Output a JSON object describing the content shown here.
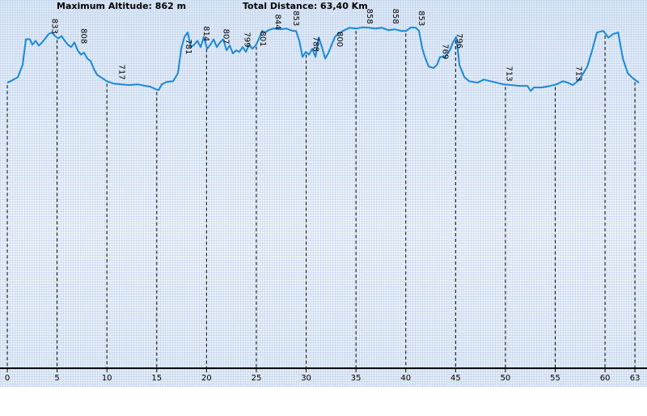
{
  "chart_data": {
    "type": "line",
    "header_left": "Maximum Altitude: 862 m",
    "header_right": "Total Distance: 63,40 Km",
    "color": "#1a88d8",
    "x": [
      0,
      0.49,
      1.06,
      1.54,
      1.87,
      2.27,
      2.52,
      2.84,
      3.17,
      3.49,
      3.82,
      4.14,
      4.47,
      4.79,
      5.12,
      5.44,
      5.77,
      6.09,
      6.41,
      6.74,
      7.06,
      7.39,
      7.71,
      8.04,
      8.36,
      8.69,
      9.01,
      9.5,
      9.99,
      10.64,
      11.45,
      12.26,
      13.07,
      13.89,
      14.37,
      14.86,
      15.18,
      15.51,
      16.0,
      16.65,
      17.13,
      17.46,
      17.79,
      18.11,
      18.43,
      18.76,
      19.08,
      19.41,
      19.73,
      20.06,
      20.38,
      20.71,
      21.03,
      21.36,
      21.68,
      22.01,
      22.33,
      22.65,
      22.98,
      23.3,
      23.63,
      23.95,
      24.28,
      24.6,
      24.93,
      25.25,
      25.58,
      25.9,
      26.23,
      26.71,
      27.36,
      28.01,
      28.66,
      28.99,
      29.31,
      29.64,
      29.96,
      30.29,
      30.61,
      30.94,
      31.26,
      31.59,
      31.91,
      32.24,
      32.56,
      32.89,
      33.37,
      33.86,
      34.35,
      35.0,
      35.65,
      36.3,
      36.95,
      37.6,
      38.24,
      38.89,
      39.54,
      40.03,
      40.52,
      41.01,
      41.33,
      41.66,
      41.98,
      42.3,
      42.79,
      43.12,
      43.44,
      43.93,
      44.42,
      44.74,
      45.07,
      45.39,
      45.88,
      46.36,
      47.17,
      47.83,
      48.48,
      49.13,
      49.78,
      50.59,
      51.4,
      52.21,
      52.54,
      52.86,
      53.67,
      54.49,
      55.13,
      55.78,
      56.27,
      56.76,
      57.25,
      57.73,
      58.22,
      58.71,
      59.19,
      59.84,
      60.33,
      60.82,
      61.31,
      61.79,
      62.28,
      62.77,
      63.4
    ],
    "values": [
      722,
      728,
      736,
      767,
      832,
      832,
      818,
      828,
      816,
      824,
      834,
      845,
      849,
      840,
      834,
      840,
      828,
      818,
      812,
      824,
      804,
      793,
      798,
      783,
      777,
      757,
      742,
      734,
      726,
      720,
      718,
      716,
      718,
      714,
      712,
      706,
      703,
      718,
      724,
      726,
      746,
      808,
      838,
      849,
      812,
      818,
      828,
      812,
      838,
      808,
      818,
      832,
      812,
      824,
      832,
      804,
      816,
      796,
      804,
      800,
      812,
      800,
      818,
      808,
      816,
      832,
      853,
      849,
      855,
      859,
      857,
      859,
      853,
      853,
      828,
      787,
      800,
      793,
      808,
      787,
      836,
      812,
      783,
      798,
      818,
      838,
      849,
      855,
      861,
      859,
      862,
      861,
      859,
      861,
      855,
      857,
      853,
      853,
      862,
      861,
      853,
      808,
      783,
      763,
      759,
      767,
      787,
      787,
      804,
      824,
      838,
      767,
      736,
      726,
      722,
      730,
      726,
      722,
      718,
      716,
      714,
      714,
      701,
      710,
      710,
      714,
      718,
      726,
      722,
      716,
      726,
      742,
      763,
      804,
      849,
      853,
      836,
      845,
      849,
      783,
      746,
      734,
      722
    ],
    "xlim": [
      0,
      63.4
    ],
    "ylim": [
      0,
      880
    ],
    "xticks": [
      0,
      5,
      10,
      15,
      20,
      25,
      30,
      35,
      40,
      45,
      50,
      55,
      60,
      63
    ],
    "markers": {
      "x": [
        4.2,
        7.1,
        10.9,
        17.6,
        19.4,
        21.4,
        23.5,
        25.1,
        26.6,
        28.4,
        30.4,
        32.8,
        35.8,
        38.4,
        41.0,
        43.4,
        44.8,
        49.8,
        56.8
      ],
      "values": [
        833,
        808,
        717,
        781,
        814,
        807,
        799,
        801,
        844,
        853,
        788,
        800,
        858,
        858,
        853,
        769,
        796,
        713,
        713
      ]
    }
  }
}
